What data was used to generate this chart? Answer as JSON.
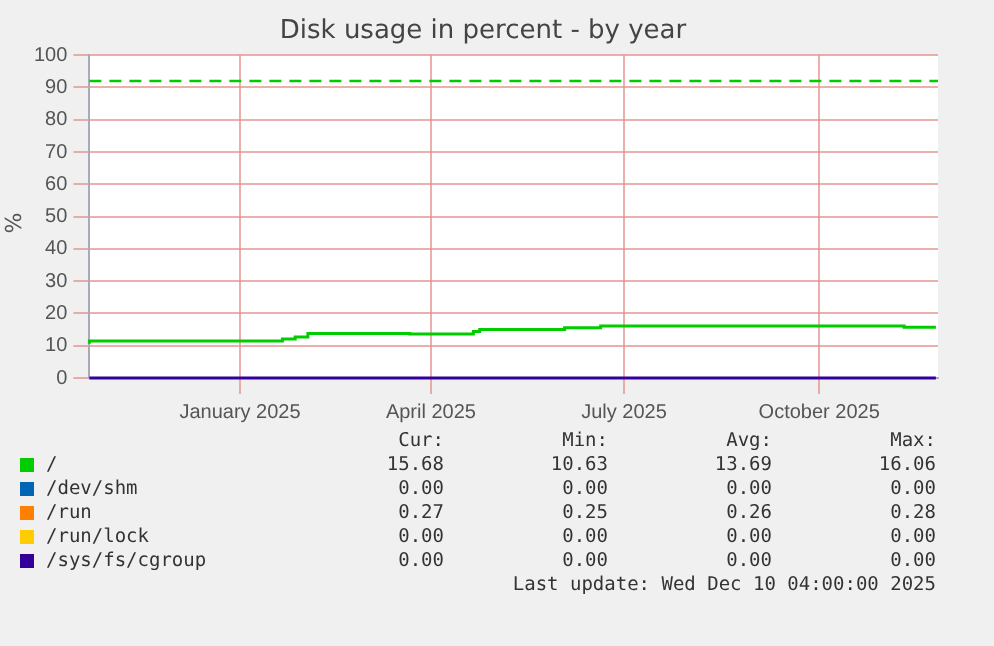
{
  "chart_data": {
    "type": "step",
    "title": "Disk usage in percent - by year",
    "ylabel": "%",
    "xlim": [
      "2024-11-06",
      "2025-12-11"
    ],
    "xticks": [
      {
        "value": "2025-01-16",
        "label": "January 2025"
      },
      {
        "value": "2025-04-16",
        "label": "April 2025"
      },
      {
        "value": "2025-07-16",
        "label": "July 2025"
      },
      {
        "value": "2025-10-16",
        "label": "October 2025"
      }
    ],
    "ylim": [
      0,
      100
    ],
    "yticks": [
      0,
      10,
      20,
      30,
      40,
      50,
      60,
      70,
      80,
      90,
      100
    ],
    "grid": true,
    "legend": "bottom",
    "series": [
      {
        "name": "/",
        "color": "#00cc00",
        "x": [
          "2024-11-06",
          "2025-02-05",
          "2025-02-11",
          "2025-02-17",
          "2025-04-06",
          "2025-05-06",
          "2025-05-09",
          "2025-06-18",
          "2025-07-05",
          "2025-11-25",
          "2025-12-04",
          "2025-12-10"
        ],
        "values": [
          10.6,
          11.5,
          12.1,
          12.7,
          13.8,
          13.6,
          14.4,
          15.0,
          15.6,
          16.1,
          15.7,
          15.7
        ]
      },
      {
        "name": "/dev/shm",
        "color": "#0066b3",
        "values": [
          null,
          null
        ]
      },
      {
        "name": "/run",
        "color": "#ff8000",
        "values": [
          null,
          null
        ]
      },
      {
        "name": "/run/lock",
        "color": "#ffcc00",
        "values": [
          null,
          null
        ]
      },
      {
        "name": "/sys/fs/cgroup",
        "color": "#330099",
        "x": [
          "2024-11-06",
          "2025-12-10"
        ],
        "values": [
          0,
          0
        ]
      }
    ],
    "ref_lines": [
      {
        "axis": "y",
        "value": 92,
        "color": "#00cc00",
        "line_style": "dashed"
      }
    ],
    "annotations": [
      "Cur:",
      "Min:",
      "Avg:",
      "Max:",
      "15.68",
      "10.63",
      "13.69",
      "16.06",
      "0.00",
      "0.00",
      "0.00",
      "0.00",
      "0.27",
      "0.25",
      "0.26",
      "0.28",
      "0.00",
      "0.00",
      "0.00",
      "0.00",
      "0.00",
      "0.00",
      "0.00",
      "0.00",
      "Last update: Wed Dec 10 04:00:00 2025"
    ]
  }
}
